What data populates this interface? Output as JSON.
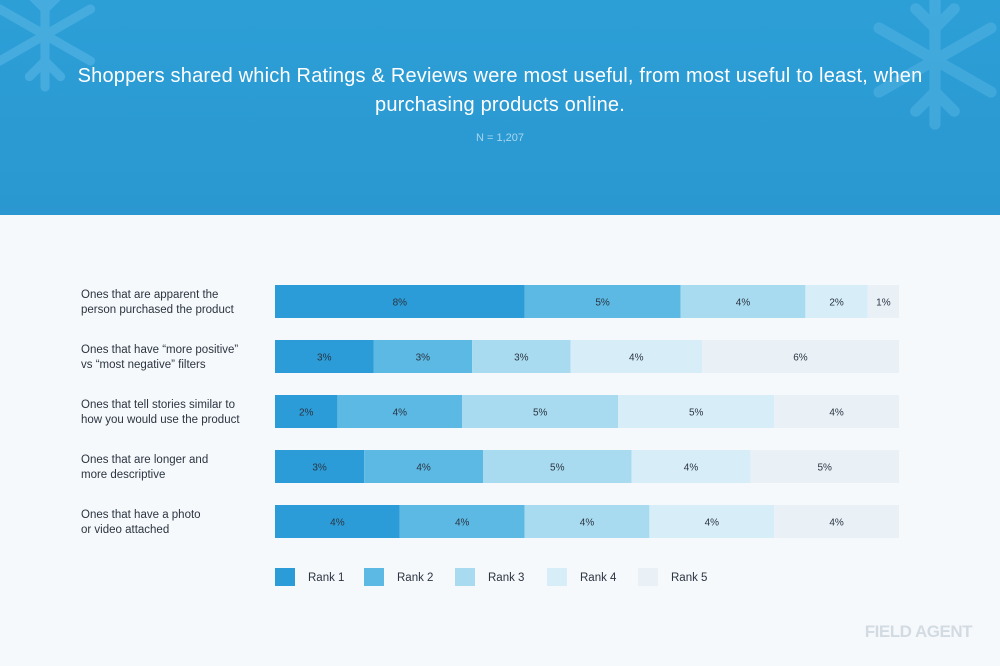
{
  "header": {
    "title": "Shoppers shared which Ratings & Reviews were most useful, from most useful to least, when purchasing products online.",
    "subtitle": "N = 1,207"
  },
  "logo": "FIELD AGENT",
  "colors": {
    "header_bg": "#2d9fd7",
    "rank1": "#2b9cd8",
    "rank2": "#5bb9e4",
    "rank3": "#a8dbf0",
    "rank4": "#d7eef9",
    "rank5": "#e9f1f7"
  },
  "chart_data": {
    "type": "bar",
    "orientation": "horizontal",
    "stacked": true,
    "categories": [
      [
        "Ones that are apparent the",
        "person purchased the product"
      ],
      [
        "Ones that have “more positive”",
        "vs “most negative” filters"
      ],
      [
        "Ones that tell stories similar to",
        "how you would use the product"
      ],
      [
        "Ones that are longer and",
        "more descriptive"
      ],
      [
        "Ones that have a photo",
        "or video attached"
      ]
    ],
    "series": [
      {
        "name": "Rank 1",
        "values": [
          8,
          3,
          2,
          3,
          4
        ]
      },
      {
        "name": "Rank 2",
        "values": [
          5,
          3,
          4,
          4,
          4
        ]
      },
      {
        "name": "Rank 3",
        "values": [
          4,
          3,
          5,
          5,
          4
        ]
      },
      {
        "name": "Rank 4",
        "values": [
          2,
          4,
          5,
          4,
          4
        ]
      },
      {
        "name": "Rank 5",
        "values": [
          1,
          6,
          4,
          5,
          4
        ]
      }
    ],
    "value_suffix": "%",
    "legend_position": "bottom",
    "grid": false
  }
}
